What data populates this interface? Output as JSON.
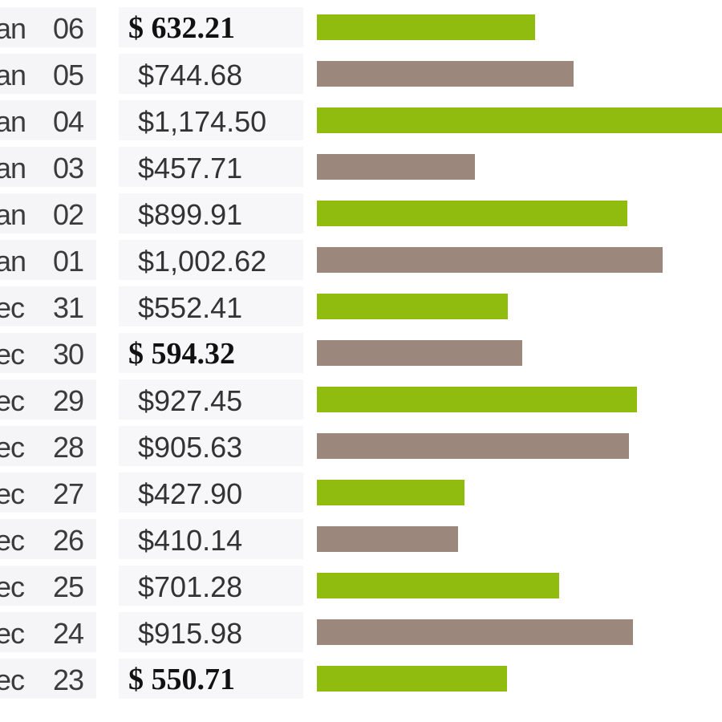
{
  "chart_data": {
    "type": "bar",
    "orientation": "horizontal",
    "colors": {
      "even": "#8fbc0f",
      "odd": "#9b877b"
    },
    "xlim": [
      0,
      1174.5
    ],
    "rows": [
      {
        "month": "an",
        "day": "06",
        "label": "$ 632.21",
        "value": 632.21,
        "bold": true
      },
      {
        "month": "an",
        "day": "05",
        "label": "$744.68",
        "value": 744.68,
        "bold": false
      },
      {
        "month": "an",
        "day": "04",
        "label": "$1,174.50",
        "value": 1174.5,
        "bold": false
      },
      {
        "month": "an",
        "day": "03",
        "label": "$457.71",
        "value": 457.71,
        "bold": false
      },
      {
        "month": "an",
        "day": "02",
        "label": "$899.91",
        "value": 899.91,
        "bold": false
      },
      {
        "month": "an",
        "day": "01",
        "label": "$1,002.62",
        "value": 1002.62,
        "bold": false
      },
      {
        "month": "ec",
        "day": "31",
        "label": "$552.41",
        "value": 552.41,
        "bold": false
      },
      {
        "month": "ec",
        "day": "30",
        "label": "$ 594.32",
        "value": 594.32,
        "bold": true
      },
      {
        "month": "ec",
        "day": "29",
        "label": "$927.45",
        "value": 927.45,
        "bold": false
      },
      {
        "month": "ec",
        "day": "28",
        "label": "$905.63",
        "value": 905.63,
        "bold": false
      },
      {
        "month": "ec",
        "day": "27",
        "label": "$427.90",
        "value": 427.9,
        "bold": false
      },
      {
        "month": "ec",
        "day": "26",
        "label": "$410.14",
        "value": 410.14,
        "bold": false
      },
      {
        "month": "ec",
        "day": "25",
        "label": "$701.28",
        "value": 701.28,
        "bold": false
      },
      {
        "month": "ec",
        "day": "24",
        "label": "$915.98",
        "value": 915.98,
        "bold": false
      },
      {
        "month": "ec",
        "day": "23",
        "label": "$ 550.71",
        "value": 550.71,
        "bold": true
      }
    ]
  }
}
